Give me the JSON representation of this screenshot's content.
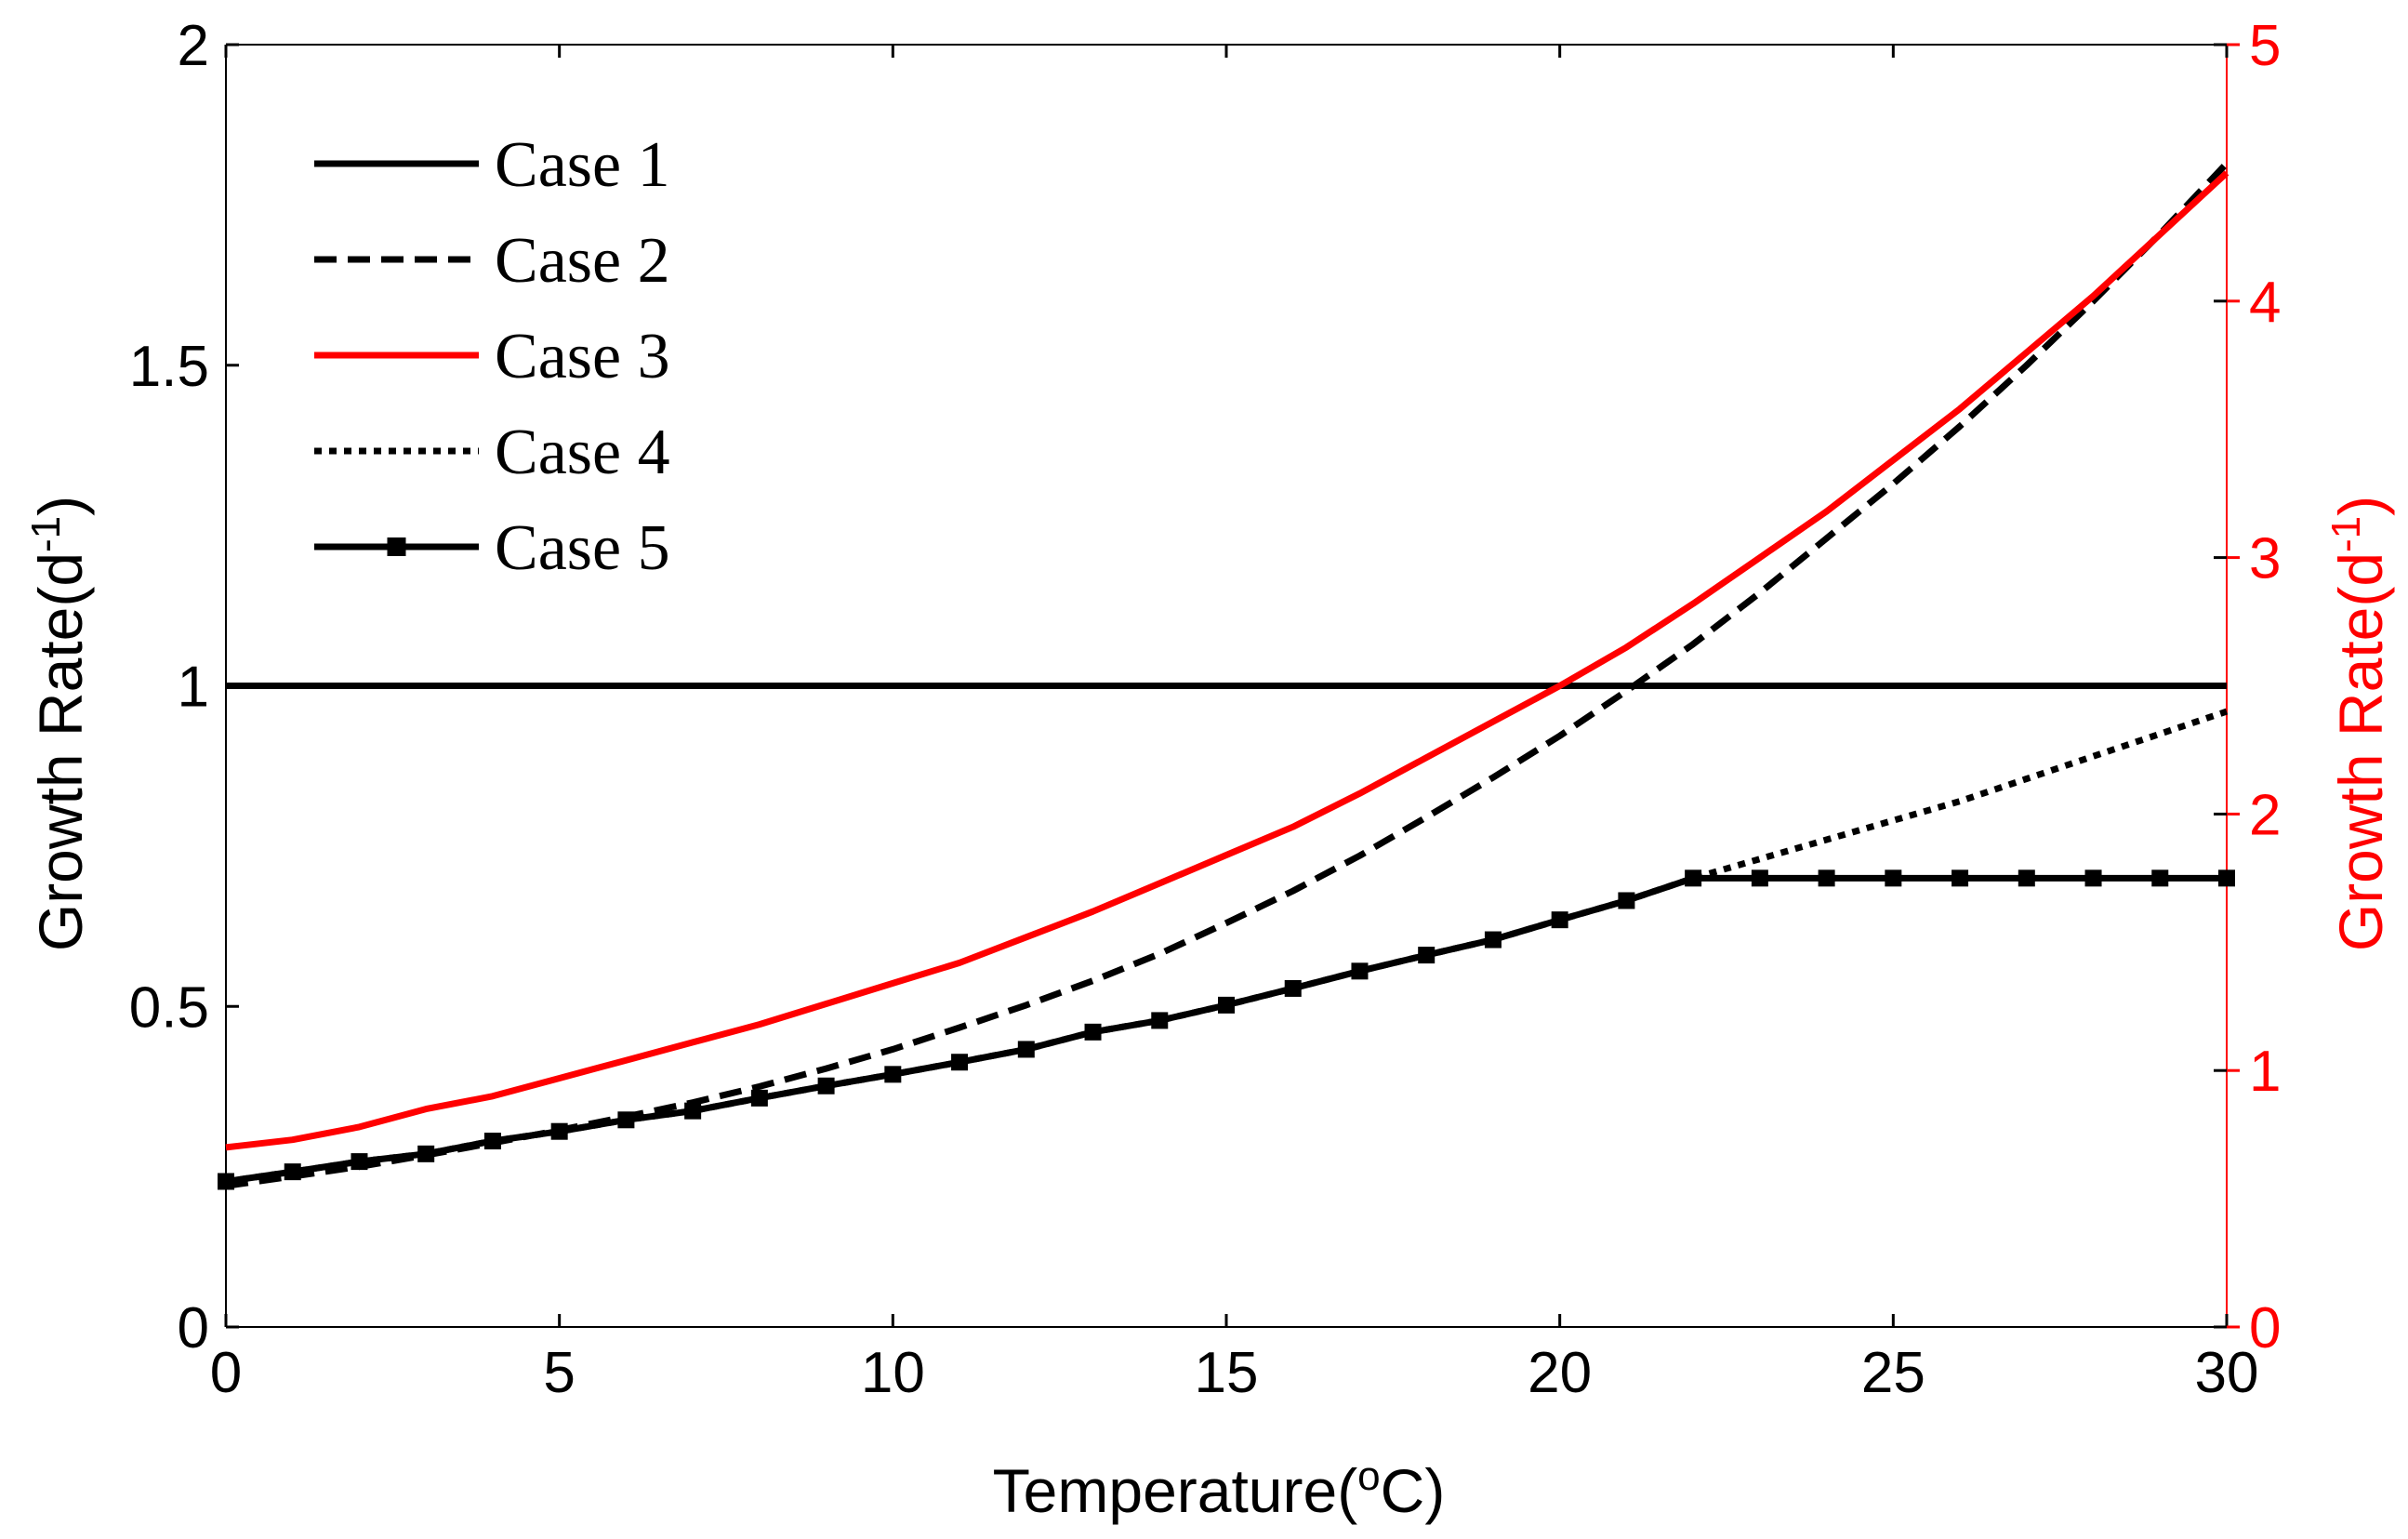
{
  "chart_data": {
    "type": "line",
    "title": "",
    "xlabel": "Temperature",
    "xlabel_unit": "(°C)",
    "ylabel": "Growth Rate",
    "ylabel_unit": "(d⁻¹)",
    "y2label": "Growth Rate",
    "y2label_unit": "(d⁻¹)",
    "xlim": [
      0,
      30
    ],
    "ylim": [
      0,
      2
    ],
    "y2lim": [
      0,
      5
    ],
    "xticks": [
      "0",
      "5",
      "10",
      "15",
      "20",
      "25",
      "30"
    ],
    "yticks": [
      "0",
      "0.5",
      "1",
      "1.5",
      "2"
    ],
    "y2ticks": [
      "0",
      "1",
      "2",
      "3",
      "4",
      "5"
    ],
    "grid": false,
    "legend_position": "top-left",
    "x": [
      0,
      1,
      2,
      3,
      4,
      5,
      6,
      7,
      8,
      9,
      10,
      11,
      12,
      13,
      14,
      15,
      16,
      17,
      18,
      19,
      20,
      21,
      22,
      23,
      24,
      25,
      26,
      27,
      28,
      29,
      30
    ],
    "series": [
      {
        "name": "Case 1",
        "axis": "left",
        "color": "#000000",
        "style": "solid",
        "marker": "none",
        "values": [
          1,
          1,
          1,
          1,
          1,
          1,
          1,
          1,
          1,
          1,
          1,
          1,
          1,
          1,
          1,
          1,
          1,
          1,
          1,
          1,
          1,
          1,
          1,
          1,
          1,
          1,
          1,
          1,
          1,
          1,
          1
        ]
      },
      {
        "name": "Case 2",
        "axis": "left",
        "color": "#000000",
        "style": "dashed",
        "marker": "none",
        "values": [
          0.22,
          0.235,
          0.25,
          0.268,
          0.287,
          0.307,
          0.328,
          0.35,
          0.375,
          0.403,
          0.433,
          0.467,
          0.502,
          0.54,
          0.582,
          0.63,
          0.68,
          0.735,
          0.795,
          0.857,
          0.922,
          0.992,
          1.065,
          1.145,
          1.23,
          1.315,
          1.405,
          1.5,
          1.6,
          1.705,
          1.815
        ]
      },
      {
        "name": "Case 3",
        "axis": "right",
        "color": "#ff0000",
        "style": "solid",
        "marker": "none",
        "values": [
          0.7,
          0.73,
          0.78,
          0.85,
          0.9,
          0.97,
          1.04,
          1.11,
          1.18,
          1.26,
          1.34,
          1.42,
          1.52,
          1.62,
          1.73,
          1.84,
          1.95,
          2.08,
          2.22,
          2.36,
          2.5,
          2.65,
          2.82,
          3.0,
          3.18,
          3.38,
          3.58,
          3.8,
          4.02,
          4.26,
          4.5
        ]
      },
      {
        "name": "Case 4",
        "axis": "left",
        "color": "#000000",
        "style": "dotted",
        "marker": "none",
        "values": [
          0.227,
          0.242,
          0.258,
          0.27,
          0.29,
          0.305,
          0.323,
          0.337,
          0.357,
          0.376,
          0.394,
          0.413,
          0.433,
          0.46,
          0.478,
          0.502,
          0.528,
          0.555,
          0.58,
          0.604,
          0.635,
          0.665,
          0.7,
          0.73,
          0.76,
          0.79,
          0.82,
          0.855,
          0.89,
          0.925,
          0.96
        ]
      },
      {
        "name": "Case 5",
        "axis": "left",
        "color": "#000000",
        "style": "solid",
        "marker": "square",
        "values": [
          0.227,
          0.242,
          0.258,
          0.27,
          0.29,
          0.305,
          0.323,
          0.337,
          0.357,
          0.376,
          0.394,
          0.413,
          0.433,
          0.46,
          0.478,
          0.502,
          0.528,
          0.555,
          0.58,
          0.604,
          0.635,
          0.665,
          0.7,
          0.7,
          0.7,
          0.7,
          0.7,
          0.7,
          0.7,
          0.7,
          0.7
        ]
      }
    ]
  }
}
